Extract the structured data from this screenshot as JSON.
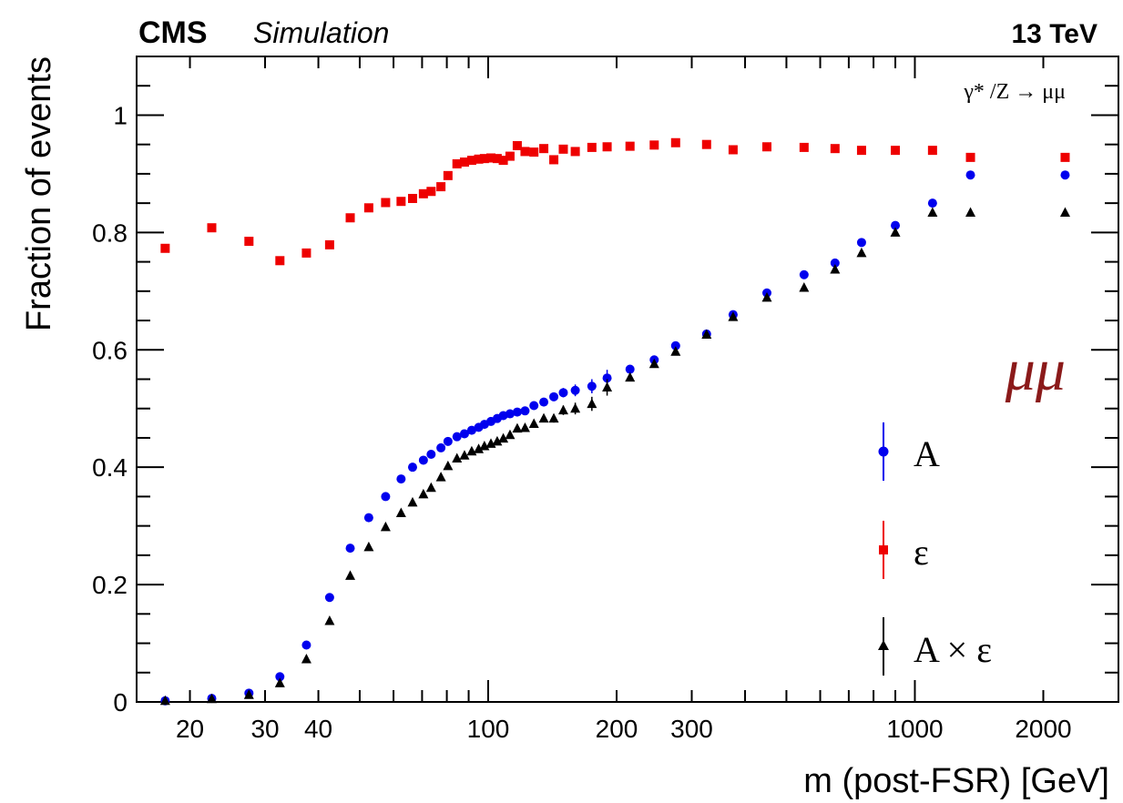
{
  "header": {
    "experiment": "CMS",
    "status": "Simulation",
    "energy": "13 TeV"
  },
  "process_label": "γ* /Z → μμ",
  "channel_label": "μμ",
  "legend": {
    "acceptance": "A",
    "efficiency": "ε",
    "product": "A × ε"
  },
  "colors": {
    "acceptance": "#0000ee",
    "efficiency": "#ee0000",
    "product": "#000000",
    "channel": "#8b1a1a"
  },
  "chart_data": {
    "type": "scatter",
    "xlabel": "m (post-FSR) [GeV]",
    "ylabel": "Fraction of events",
    "xscale": "log",
    "xlim": [
      15,
      3000
    ],
    "ylim": [
      0,
      1.1
    ],
    "xticks": [
      {
        "value": 20,
        "label": "20"
      },
      {
        "value": 30,
        "label": "30"
      },
      {
        "value": 40,
        "label": "40"
      },
      {
        "value": 100,
        "label": "100"
      },
      {
        "value": 200,
        "label": "200"
      },
      {
        "value": 300,
        "label": "300"
      },
      {
        "value": 1000,
        "label": "1000"
      },
      {
        "value": 2000,
        "label": "2000"
      }
    ],
    "yticks": [
      {
        "value": 0,
        "label": "0"
      },
      {
        "value": 0.2,
        "label": "0.2"
      },
      {
        "value": 0.4,
        "label": "0.4"
      },
      {
        "value": 0.6,
        "label": "0.6"
      },
      {
        "value": 0.8,
        "label": "0.8"
      },
      {
        "value": 1,
        "label": "1"
      }
    ],
    "x": [
      17.5,
      22.5,
      27.5,
      32.5,
      37.5,
      42.5,
      47.5,
      52.5,
      57.5,
      62.5,
      66.5,
      70.5,
      73.5,
      77.5,
      80.5,
      84.5,
      88,
      91.5,
      95,
      98,
      101.5,
      105,
      108.5,
      112.5,
      117,
      122,
      128,
      135,
      142.5,
      150,
      160,
      175,
      190,
      215,
      245,
      275,
      325,
      375,
      450,
      550,
      650,
      750,
      900,
      1100,
      1350,
      2250
    ],
    "series": [
      {
        "name": "A",
        "marker": "circle",
        "values": [
          0.002,
          0.006,
          0.015,
          0.043,
          0.097,
          0.178,
          0.262,
          0.314,
          0.35,
          0.38,
          0.4,
          0.412,
          0.422,
          0.433,
          0.444,
          0.452,
          0.457,
          0.463,
          0.468,
          0.473,
          0.478,
          0.483,
          0.488,
          0.491,
          0.494,
          0.496,
          0.505,
          0.511,
          0.52,
          0.527,
          0.531,
          0.538,
          0.552,
          0.567,
          0.583,
          0.607,
          0.627,
          0.66,
          0.697,
          0.728,
          0.748,
          0.783,
          0.812,
          0.85,
          0.898,
          0.898
        ],
        "errors": [
          0.001,
          0.001,
          0.001,
          0.002,
          0.002,
          0.002,
          0.002,
          0.002,
          0.002,
          0.002,
          0.002,
          0.002,
          0.002,
          0.002,
          0.002,
          0.002,
          0.002,
          0.002,
          0.002,
          0.002,
          0.002,
          0.002,
          0.002,
          0.003,
          0.003,
          0.004,
          0.005,
          0.006,
          0.007,
          0.008,
          0.01,
          0.012,
          0.014,
          0.004,
          0.004,
          0.004,
          0.004,
          0.004,
          0.004,
          0.004,
          0.004,
          0.005,
          0.005,
          0.005,
          0.006,
          0.006
        ]
      },
      {
        "name": "ε",
        "marker": "square",
        "values": [
          0.773,
          0.808,
          0.785,
          0.752,
          0.765,
          0.779,
          0.825,
          0.842,
          0.851,
          0.853,
          0.858,
          0.866,
          0.87,
          0.878,
          0.897,
          0.917,
          0.92,
          0.923,
          0.925,
          0.926,
          0.927,
          0.926,
          0.923,
          0.93,
          0.948,
          0.938,
          0.937,
          0.943,
          0.924,
          0.942,
          0.938,
          0.945,
          0.946,
          0.947,
          0.949,
          0.953,
          0.95,
          0.941,
          0.946,
          0.945,
          0.943,
          0.94,
          0.94,
          0.94,
          0.928,
          0.928
        ],
        "errors": [
          0.004,
          0.004,
          0.004,
          0.003,
          0.003,
          0.003,
          0.003,
          0.003,
          0.003,
          0.003,
          0.003,
          0.003,
          0.003,
          0.003,
          0.003,
          0.003,
          0.003,
          0.003,
          0.003,
          0.003,
          0.003,
          0.003,
          0.003,
          0.003,
          0.003,
          0.003,
          0.003,
          0.003,
          0.003,
          0.003,
          0.003,
          0.003,
          0.003,
          0.003,
          0.003,
          0.003,
          0.003,
          0.003,
          0.003,
          0.003,
          0.003,
          0.003,
          0.003,
          0.003,
          0.004,
          0.004
        ]
      },
      {
        "name": "A × ε",
        "marker": "triangle",
        "values": [
          0.002,
          0.005,
          0.012,
          0.032,
          0.073,
          0.138,
          0.215,
          0.264,
          0.298,
          0.322,
          0.34,
          0.354,
          0.365,
          0.383,
          0.402,
          0.415,
          0.42,
          0.427,
          0.431,
          0.436,
          0.44,
          0.444,
          0.449,
          0.455,
          0.466,
          0.467,
          0.474,
          0.483,
          0.483,
          0.497,
          0.5,
          0.508,
          0.536,
          0.553,
          0.576,
          0.597,
          0.626,
          0.656,
          0.689,
          0.706,
          0.737,
          0.765,
          0.8,
          0.834,
          0.834,
          0.834
        ],
        "errors": [
          0.001,
          0.001,
          0.001,
          0.002,
          0.002,
          0.002,
          0.002,
          0.002,
          0.002,
          0.002,
          0.002,
          0.002,
          0.002,
          0.002,
          0.002,
          0.002,
          0.002,
          0.002,
          0.002,
          0.002,
          0.002,
          0.002,
          0.002,
          0.003,
          0.003,
          0.004,
          0.005,
          0.006,
          0.007,
          0.008,
          0.01,
          0.012,
          0.014,
          0.004,
          0.004,
          0.004,
          0.004,
          0.004,
          0.004,
          0.004,
          0.004,
          0.005,
          0.005,
          0.005,
          0.006,
          0.006
        ]
      }
    ],
    "grid": false,
    "legend_position": "bottom-right"
  }
}
